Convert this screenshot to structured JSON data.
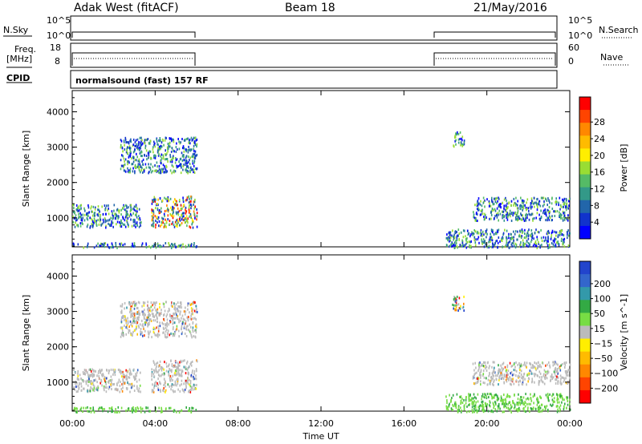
{
  "header": {
    "station": "Adak West (fitACF)",
    "beam": "Beam 18",
    "date": "21/May/2016"
  },
  "status_panels": {
    "nsky_label": "N.Sky",
    "nsky_ticks": [
      "10^5",
      "10^0"
    ],
    "nsearch_label": "N.Search",
    "nsearch_ticks": [
      "10^5",
      "10^0"
    ],
    "freq_label_1": "Freq.",
    "freq_label_2": "[MHz]",
    "freq_ticks": [
      "18",
      "8"
    ],
    "nave_label": "Nave",
    "nave_ticks": [
      "60",
      "0"
    ],
    "cpid_label": "CPID",
    "cpid_text": "normalsound (fast) 157 RF"
  },
  "chart_data": [
    {
      "type": "heatmap",
      "panel": "power",
      "ylabel": "Slant Range [km]",
      "xlabel": "",
      "x_ticks": [
        "00:00",
        "04:00",
        "08:00",
        "12:00",
        "16:00",
        "20:00",
        "00:00"
      ],
      "xlim_hours": [
        0,
        24
      ],
      "y_ticks": [
        1000,
        2000,
        3000,
        4000
      ],
      "ylim": [
        180,
        4600
      ],
      "colorbar_label": "Power [dB]",
      "colorbar_ticks": [
        "28",
        "24",
        "20",
        "16",
        "12",
        "8",
        "4"
      ],
      "colorbar_colors": [
        "#ff0000",
        "#ff4400",
        "#ff8800",
        "#ffbb00",
        "#ffee00",
        "#99dd33",
        "#55bb66",
        "#339988",
        "#2266aa",
        "#1133cc",
        "#0000ff"
      ],
      "data_regions": [
        {
          "t_start_h": 0.0,
          "t_end_h": 6.0,
          "range_km": [
            180,
            320
          ],
          "level": "mixed"
        },
        {
          "t_start_h": 0.0,
          "t_end_h": 3.3,
          "range_km": [
            750,
            1400
          ],
          "level": "4-16"
        },
        {
          "t_start_h": 3.8,
          "t_end_h": 6.0,
          "range_km": [
            750,
            1650
          ],
          "level": "4-28"
        },
        {
          "t_start_h": 2.3,
          "t_end_h": 6.0,
          "range_km": [
            2300,
            3300
          ],
          "level": "4-16"
        },
        {
          "t_start_h": 18.0,
          "t_end_h": 24.0,
          "range_km": [
            180,
            700
          ],
          "level": "mixed"
        },
        {
          "t_start_h": 18.3,
          "t_end_h": 18.9,
          "range_km": [
            3050,
            3450
          ],
          "level": "4-16"
        },
        {
          "t_start_h": 19.3,
          "t_end_h": 24.0,
          "range_km": [
            950,
            1600
          ],
          "level": "4-8"
        }
      ]
    },
    {
      "type": "heatmap",
      "panel": "velocity",
      "ylabel": "Slant Range [km]",
      "xlabel": "Time UT",
      "x_ticks": [
        "00:00",
        "04:00",
        "08:00",
        "12:00",
        "16:00",
        "20:00",
        "00:00"
      ],
      "xlim_hours": [
        0,
        24
      ],
      "y_ticks": [
        1000,
        2000,
        3000,
        4000
      ],
      "ylim": [
        180,
        4600
      ],
      "colorbar_label": "Velocity [m s^-1]",
      "colorbar_ticks": [
        "200",
        "100",
        "50",
        "15",
        "−15",
        "−50",
        "−100",
        "−200"
      ],
      "colorbar_colors": [
        "#2244cc",
        "#3366cc",
        "#3399aa",
        "#33aa44",
        "#77dd44",
        "#bbbbbb",
        "#ffee00",
        "#ffbb00",
        "#ff8800",
        "#ff4400",
        "#ff0000"
      ],
      "data_regions": [
        {
          "t_start_h": 0.0,
          "t_end_h": 6.0,
          "range_km": [
            180,
            320
          ],
          "level": "ground"
        },
        {
          "t_start_h": 0.0,
          "t_end_h": 3.3,
          "range_km": [
            750,
            1400
          ],
          "level": "near-zero"
        },
        {
          "t_start_h": 3.8,
          "t_end_h": 6.0,
          "range_km": [
            750,
            1650
          ],
          "level": "near-zero"
        },
        {
          "t_start_h": 2.3,
          "t_end_h": 6.0,
          "range_km": [
            2300,
            3300
          ],
          "level": "near-zero"
        },
        {
          "t_start_h": 18.0,
          "t_end_h": 24.0,
          "range_km": [
            180,
            700
          ],
          "level": "ground"
        },
        {
          "t_start_h": 18.3,
          "t_end_h": 18.9,
          "range_km": [
            3050,
            3450
          ],
          "level": "mixed"
        },
        {
          "t_start_h": 19.3,
          "t_end_h": 24.0,
          "range_km": [
            950,
            1600
          ],
          "level": "near-zero"
        }
      ]
    }
  ]
}
